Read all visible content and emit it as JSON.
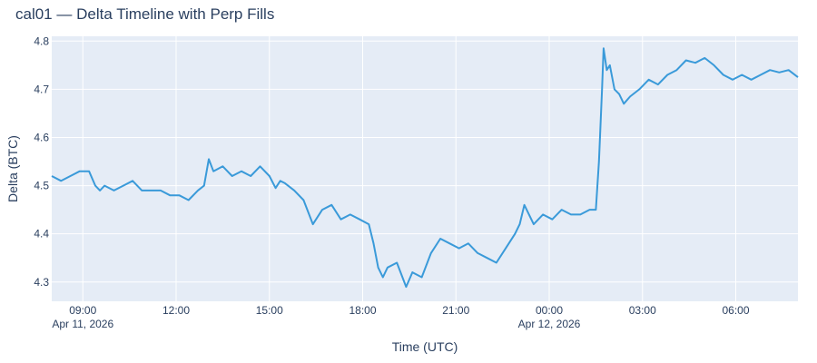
{
  "chart_data": {
    "type": "line",
    "title": "cal01 — Delta Timeline with Perp Fills",
    "xlabel": "Time (UTC)",
    "ylabel": "Delta (BTC)",
    "x_unit": "hours since Apr 11, 2026 00:00 UTC",
    "xlim": [
      8.0,
      32.0
    ],
    "ylim": [
      4.26,
      4.81
    ],
    "x_ticks": [
      {
        "value": 9,
        "label": "09:00",
        "sublabel": "Apr 11, 2026"
      },
      {
        "value": 12,
        "label": "12:00",
        "sublabel": ""
      },
      {
        "value": 15,
        "label": "15:00",
        "sublabel": ""
      },
      {
        "value": 18,
        "label": "18:00",
        "sublabel": ""
      },
      {
        "value": 21,
        "label": "21:00",
        "sublabel": ""
      },
      {
        "value": 24,
        "label": "00:00",
        "sublabel": "Apr 12, 2026"
      },
      {
        "value": 27,
        "label": "03:00",
        "sublabel": ""
      },
      {
        "value": 30,
        "label": "06:00",
        "sublabel": ""
      }
    ],
    "y_ticks": [
      {
        "value": 4.3,
        "label": "4.3"
      },
      {
        "value": 4.4,
        "label": "4.4"
      },
      {
        "value": 4.5,
        "label": "4.5"
      },
      {
        "value": 4.6,
        "label": "4.6"
      },
      {
        "value": 4.7,
        "label": "4.7"
      },
      {
        "value": 4.8,
        "label": "4.8"
      }
    ],
    "grid": true,
    "series": [
      {
        "name": "delta",
        "color": "#3a9ad9",
        "x": [
          8.0,
          8.3,
          8.6,
          8.9,
          9.2,
          9.4,
          9.55,
          9.7,
          10.0,
          10.3,
          10.6,
          10.9,
          11.2,
          11.5,
          11.8,
          12.1,
          12.4,
          12.7,
          12.9,
          13.05,
          13.2,
          13.5,
          13.8,
          14.1,
          14.4,
          14.7,
          15.0,
          15.2,
          15.35,
          15.5,
          15.8,
          16.1,
          16.4,
          16.7,
          17.0,
          17.3,
          17.6,
          17.9,
          18.2,
          18.35,
          18.5,
          18.65,
          18.8,
          19.1,
          19.4,
          19.6,
          19.9,
          20.2,
          20.5,
          20.8,
          21.1,
          21.4,
          21.7,
          22.0,
          22.3,
          22.6,
          22.9,
          23.05,
          23.2,
          23.5,
          23.8,
          24.1,
          24.4,
          24.7,
          25.0,
          25.3,
          25.5,
          25.6,
          25.7,
          25.75,
          25.85,
          25.95,
          26.1,
          26.25,
          26.4,
          26.6,
          26.9,
          27.2,
          27.5,
          27.8,
          28.1,
          28.4,
          28.7,
          29.0,
          29.3,
          29.6,
          29.9,
          30.2,
          30.5,
          30.8,
          31.1,
          31.4,
          31.7,
          32.0
        ],
        "y": [
          4.52,
          4.51,
          4.52,
          4.53,
          4.53,
          4.5,
          4.49,
          4.5,
          4.49,
          4.5,
          4.51,
          4.49,
          4.49,
          4.49,
          4.48,
          4.48,
          4.47,
          4.49,
          4.5,
          4.555,
          4.53,
          4.54,
          4.52,
          4.53,
          4.52,
          4.54,
          4.52,
          4.495,
          4.51,
          4.505,
          4.49,
          4.47,
          4.42,
          4.45,
          4.46,
          4.43,
          4.44,
          4.43,
          4.42,
          4.38,
          4.33,
          4.31,
          4.33,
          4.34,
          4.29,
          4.32,
          4.31,
          4.36,
          4.39,
          4.38,
          4.37,
          4.38,
          4.36,
          4.35,
          4.34,
          4.37,
          4.4,
          4.42,
          4.46,
          4.42,
          4.44,
          4.43,
          4.45,
          4.44,
          4.44,
          4.45,
          4.45,
          4.55,
          4.7,
          4.785,
          4.74,
          4.75,
          4.7,
          4.69,
          4.67,
          4.685,
          4.7,
          4.72,
          4.71,
          4.73,
          4.74,
          4.76,
          4.755,
          4.765,
          4.75,
          4.73,
          4.72,
          4.73,
          4.72,
          4.73,
          4.74,
          4.735,
          4.74,
          4.725
        ]
      }
    ]
  }
}
